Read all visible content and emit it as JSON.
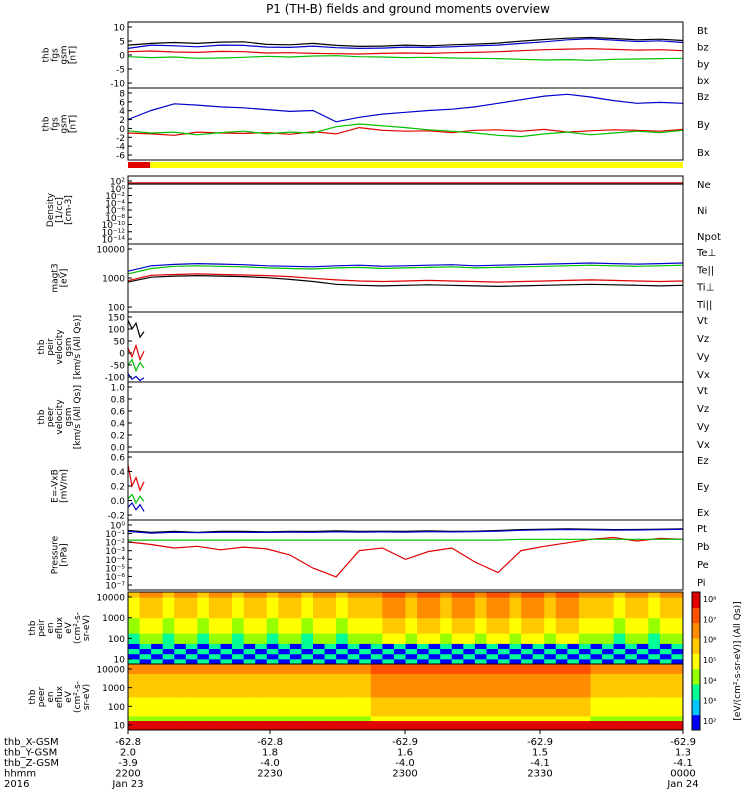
{
  "chart_data": {
    "type": "line",
    "title": "P1 (TH-B) fields and ground moments overview",
    "panels": [
      {
        "id": "fgs-gsm",
        "ylabel": [
          "thb",
          "fgs",
          "gsm",
          "[nT]"
        ],
        "yticks": [
          "10",
          "5",
          "0",
          "-5",
          "-10"
        ],
        "yscale": "linear",
        "ylim": [
          -10,
          10
        ],
        "series": [
          {
            "name": "Bt",
            "color": "#000000",
            "values": [
              3.0,
              3.5,
              3.8,
              3.5,
              3.9,
              4.0,
              3.2,
              3.1,
              3.5,
              2.9,
              2.6,
              2.7,
              3.0,
              2.8,
              3.1,
              3.3,
              3.6,
              4.2,
              4.7,
              5.1,
              5.3,
              5.0,
              4.6,
              4.8,
              4.4
            ]
          },
          {
            "name": "bz",
            "color": "#e00000",
            "values": [
              1.0,
              1.2,
              0.9,
              0.8,
              1.1,
              1.0,
              0.6,
              0.7,
              0.5,
              0.4,
              0.3,
              0.5,
              0.6,
              0.5,
              0.7,
              0.8,
              1.0,
              1.3,
              1.6,
              1.8,
              1.9,
              1.7,
              1.5,
              1.6,
              1.3
            ]
          },
          {
            "name": "by",
            "color": "#00c000",
            "values": [
              -0.5,
              -0.8,
              -0.6,
              -1.0,
              -0.9,
              -0.7,
              -0.4,
              -0.6,
              -0.3,
              -0.2,
              -0.5,
              -0.6,
              -0.8,
              -0.7,
              -0.9,
              -1.0,
              -1.1,
              -1.3,
              -1.5,
              -1.4,
              -1.6,
              -1.3,
              -1.2,
              -1.1,
              -1.0
            ]
          },
          {
            "name": "bx",
            "color": "#0000cc",
            "values": [
              2.0,
              3.0,
              2.8,
              2.5,
              3.0,
              2.9,
              2.4,
              2.3,
              2.7,
              2.2,
              2.0,
              2.1,
              2.4,
              2.3,
              2.5,
              2.8,
              3.0,
              3.5,
              4.0,
              4.6,
              4.9,
              4.5,
              4.1,
              4.3,
              3.8
            ]
          }
        ]
      },
      {
        "id": "fgs-gsm-zoom",
        "ylabel": [
          "thb",
          "fgs",
          "gsm",
          "[nT]"
        ],
        "yticks": [
          "8",
          "6",
          "4",
          "2",
          "0",
          "-2",
          "-4",
          "-6"
        ],
        "yscale": "linear",
        "ylim": [
          -7,
          9
        ],
        "series": [
          {
            "name": "Bz",
            "color": "#e00000",
            "values": [
              -1.0,
              -1.2,
              -1.5,
              -0.8,
              -1.0,
              -1.1,
              -0.9,
              -1.3,
              -0.7,
              -1.2,
              0.2,
              -0.4,
              -0.6,
              -0.5,
              -0.9,
              -0.4,
              -0.3,
              -0.6,
              -0.2,
              -0.8,
              -0.5,
              -0.3,
              -0.4,
              -0.6,
              -0.2
            ]
          },
          {
            "name": "By",
            "color": "#00c000",
            "values": [
              -0.5,
              -1.0,
              -0.8,
              -1.4,
              -0.9,
              -0.6,
              -1.2,
              -0.8,
              -1.0,
              0.4,
              1.0,
              0.6,
              0.2,
              -0.3,
              -0.6,
              -1.0,
              -1.5,
              -1.8,
              -1.2,
              -0.8,
              -1.4,
              -1.0,
              -0.6,
              -0.9,
              -0.4
            ]
          },
          {
            "name": "Bx",
            "color": "#0000cc",
            "values": [
              2.0,
              4.0,
              5.5,
              5.2,
              4.8,
              4.6,
              4.2,
              3.8,
              4.0,
              1.5,
              2.5,
              3.2,
              3.6,
              4.0,
              4.3,
              4.8,
              5.6,
              6.4,
              7.2,
              7.6,
              7.0,
              6.2,
              5.6,
              5.8,
              5.6
            ]
          }
        ]
      },
      {
        "id": "density",
        "ylabel": [
          "Density",
          "[1/cc]",
          "[cm-3]"
        ],
        "yticks": [
          "10²",
          "10⁰",
          "10⁻²",
          "10⁻⁴",
          "10⁻⁶",
          "10⁻⁸",
          "10⁻¹⁰",
          "10⁻¹²",
          "10⁻¹⁴"
        ],
        "yscale": "log",
        "ylim": [
          -15,
          2
        ],
        "series": [
          {
            "name": "Ne",
            "color": "#e00000",
            "values": [
              0.3,
              0.3,
              0.3,
              0.3,
              0.3,
              0.3,
              0.3,
              0.3,
              0.3,
              0.3,
              0.3,
              0.3,
              0.3,
              0.3,
              0.3,
              0.3,
              0.3,
              0.3,
              0.3,
              0.3,
              0.3,
              0.3,
              0.3,
              0.3,
              0.3
            ]
          },
          {
            "name": "Ni",
            "color": "#000000",
            "values": [
              0.0,
              0.0,
              0.0,
              0.0,
              0.0,
              0.0,
              0.0,
              0.0,
              0.0,
              0.0,
              0.0,
              0.0,
              0.0,
              0.0,
              0.0,
              0.0,
              0.0,
              0.0,
              0.0,
              0.0,
              0.0,
              0.0,
              0.0,
              0.0,
              0.0
            ]
          },
          {
            "name": "Npot",
            "color": "#0000cc",
            "values": []
          }
        ]
      },
      {
        "id": "magt3",
        "ylabel": [
          "magt3",
          "[eV]"
        ],
        "yticks": [
          "10000",
          "1000",
          "100"
        ],
        "yscale": "log",
        "ylim": [
          1.6,
          4.1
        ],
        "series": [
          {
            "name": "Te⊥",
            "color": "#e00000",
            "values": [
              2.75,
              2.95,
              2.98,
              3.0,
              2.98,
              2.96,
              2.94,
              2.9,
              2.84,
              2.78,
              2.74,
              2.72,
              2.74,
              2.76,
              2.74,
              2.72,
              2.7,
              2.72,
              2.74,
              2.76,
              2.78,
              2.76,
              2.74,
              2.72,
              2.74
            ]
          },
          {
            "name": "Te||",
            "color": "#000000",
            "values": [
              2.7,
              2.88,
              2.92,
              2.94,
              2.92,
              2.9,
              2.86,
              2.8,
              2.72,
              2.62,
              2.58,
              2.56,
              2.58,
              2.6,
              2.58,
              2.56,
              2.54,
              2.56,
              2.58,
              2.6,
              2.62,
              2.6,
              2.58,
              2.56,
              2.58
            ]
          },
          {
            "name": "Ti⊥",
            "color": "#0000cc",
            "values": [
              3.1,
              3.3,
              3.35,
              3.38,
              3.36,
              3.34,
              3.3,
              3.28,
              3.26,
              3.3,
              3.32,
              3.28,
              3.3,
              3.32,
              3.34,
              3.3,
              3.32,
              3.34,
              3.36,
              3.38,
              3.4,
              3.38,
              3.36,
              3.38,
              3.4
            ]
          },
          {
            "name": "Ti||",
            "color": "#00c000",
            "values": [
              3.0,
              3.2,
              3.28,
              3.3,
              3.28,
              3.26,
              3.22,
              3.2,
              3.18,
              3.22,
              3.24,
              3.2,
              3.22,
              3.24,
              3.26,
              3.22,
              3.24,
              3.26,
              3.28,
              3.3,
              3.32,
              3.3,
              3.28,
              3.3,
              3.32
            ]
          }
        ]
      },
      {
        "id": "peir-velocity",
        "ylabel": [
          "thb",
          "peir",
          "velocity",
          "gsm",
          "[km/s (All Qs)]"
        ],
        "yticks": [
          "150",
          "100",
          "50",
          "0",
          "-50",
          "-100"
        ],
        "yscale": "linear",
        "ylim": [
          -100,
          150
        ],
        "series": [
          {
            "name": "Vt",
            "color": "#000000",
            "values": [
              120,
              90,
              110,
              60,
              80
            ]
          },
          {
            "name": "Vz",
            "color": "#e00000",
            "values": [
              20,
              -10,
              30,
              -20,
              10
            ]
          },
          {
            "name": "Vy",
            "color": "#00c000",
            "values": [
              -40,
              -20,
              -60,
              -30,
              -50
            ]
          },
          {
            "name": "Vx",
            "color": "#0000cc",
            "values": [
              -70,
              -90,
              -80,
              -95,
              -85
            ]
          }
        ]
      },
      {
        "id": "peer-velocity",
        "ylabel": [
          "thb",
          "peer",
          "velocity",
          "gsm",
          "[km/s (All Qs)]"
        ],
        "yticks": [
          "1.0",
          "0.8",
          "0.6",
          "0.4",
          "0.2",
          "0.0"
        ],
        "yscale": "linear",
        "ylim": [
          0,
          1
        ],
        "series": [
          {
            "name": "Vt",
            "color": "#000000",
            "values": []
          },
          {
            "name": "Vz",
            "color": "#e00000",
            "values": []
          },
          {
            "name": "Vy",
            "color": "#00c000",
            "values": []
          },
          {
            "name": "Vx",
            "color": "#0000cc",
            "values": []
          }
        ]
      },
      {
        "id": "efield",
        "ylabel": [
          "E=-VxB",
          "[mV/m]"
        ],
        "yticks": [
          "0.6",
          "0.4",
          "0.2",
          "0.0",
          "-0.2"
        ],
        "yscale": "linear",
        "ylim": [
          -0.2,
          0.6
        ],
        "series": [
          {
            "name": "Ez",
            "color": "#e00000",
            "values": [
              0.45,
              0.2,
              0.3,
              0.15,
              0.25
            ]
          },
          {
            "name": "Ey",
            "color": "#00c000",
            "values": [
              0.05,
              0.1,
              0.0,
              0.08,
              0.02
            ]
          },
          {
            "name": "Ex",
            "color": "#0000cc",
            "values": [
              -0.05,
              0.0,
              -0.08,
              -0.02,
              -0.1
            ]
          }
        ]
      },
      {
        "id": "pressure",
        "ylabel": [
          "Pressure",
          "[nPa]"
        ],
        "yticks": [
          "10⁰",
          "10⁻¹",
          "10⁻²",
          "10⁻³",
          "10⁻⁴",
          "10⁻⁵",
          "10⁻⁶",
          "10⁻⁷"
        ],
        "yscale": "log",
        "ylim": [
          -8,
          0
        ],
        "series": [
          {
            "name": "Pt",
            "color": "#000000",
            "values": [
              -1.2,
              -1.4,
              -1.3,
              -1.4,
              -1.3,
              -1.3,
              -1.35,
              -1.3,
              -1.32,
              -1.25,
              -1.3,
              -1.28,
              -1.3,
              -1.25,
              -1.3,
              -1.28,
              -1.2,
              -1.1,
              -1.05,
              -1.0,
              -1.05,
              -1.1,
              -1.08,
              -1.05,
              -1.0
            ]
          },
          {
            "name": "Pb",
            "color": "#e00000",
            "values": [
              -2.5,
              -2.8,
              -3.2,
              -3.0,
              -3.4,
              -3.1,
              -3.3,
              -4.0,
              -5.5,
              -6.5,
              -3.5,
              -3.2,
              -4.5,
              -3.6,
              -3.2,
              -4.8,
              -6.0,
              -3.5,
              -3.0,
              -2.6,
              -2.2,
              -2.0,
              -2.4,
              -2.1,
              -2.2
            ]
          },
          {
            "name": "Pe",
            "color": "#00c000",
            "values": [
              -2.3,
              -2.3,
              -2.3,
              -2.3,
              -2.3,
              -2.3,
              -2.3,
              -2.3,
              -2.3,
              -2.3,
              -2.3,
              -2.3,
              -2.3,
              -2.3,
              -2.3,
              -2.3,
              -2.3,
              -2.2,
              -2.2,
              -2.2,
              -2.2,
              -2.2,
              -2.2,
              -2.2,
              -2.2
            ]
          },
          {
            "name": "Pi",
            "color": "#0000cc",
            "values": [
              -1.3,
              -1.5,
              -1.4,
              -1.45,
              -1.4,
              -1.4,
              -1.42,
              -1.38,
              -1.4,
              -1.35,
              -1.38,
              -1.36,
              -1.38,
              -1.34,
              -1.36,
              -1.34,
              -1.28,
              -1.18,
              -1.12,
              -1.08,
              -1.12,
              -1.16,
              -1.14,
              -1.1,
              -1.06
            ]
          }
        ]
      },
      {
        "id": "peir-en-eflux",
        "type": "heatmap",
        "ylabel": [
          "thb",
          "peir",
          "en",
          "eflux",
          "eV",
          "(cm²-s-",
          "sr-eV)"
        ],
        "yticks": [
          "10000",
          "1000",
          "100",
          "10"
        ],
        "yscale": "log",
        "ylim": [
          0.8,
          4.4
        ]
      },
      {
        "id": "peer-en-eflux",
        "type": "heatmap",
        "ylabel": [
          "thb",
          "peer",
          "en",
          "eflux",
          "eV",
          "(cm²-s-",
          "sr-eV)"
        ],
        "yticks": [
          "10000",
          "1000",
          "100",
          "10"
        ],
        "yscale": "log",
        "ylim": [
          0.8,
          4.4
        ]
      }
    ],
    "colorbar": {
      "label": "[eV/(cm²-s-sr-eV)]  (All Qs)]",
      "ticks": [
        "10⁸",
        "10⁷",
        "10⁶",
        "10⁵",
        "10⁴",
        "10³",
        "10²"
      ]
    },
    "x_axis": {
      "rows": [
        {
          "name": "thb_X-GSM",
          "values": [
            "-62.8",
            "-62.8",
            "-62.9",
            "-62.9",
            "-62.9"
          ]
        },
        {
          "name": "thb_Y-GSM",
          "values": [
            "2.0",
            "1.8",
            "1.6",
            "1.5",
            "1.3"
          ]
        },
        {
          "name": "thb_Z-GSM",
          "values": [
            "-3.9",
            "-4.0",
            "-4.0",
            "-4.1",
            "-4.1"
          ]
        },
        {
          "name": "hhmm",
          "values": [
            "2200",
            "2230",
            "2300",
            "2330",
            "0000"
          ]
        },
        {
          "name": "2016",
          "values": [
            "Jan 23",
            "",
            "",
            "",
            "Jan 24"
          ]
        }
      ]
    }
  }
}
